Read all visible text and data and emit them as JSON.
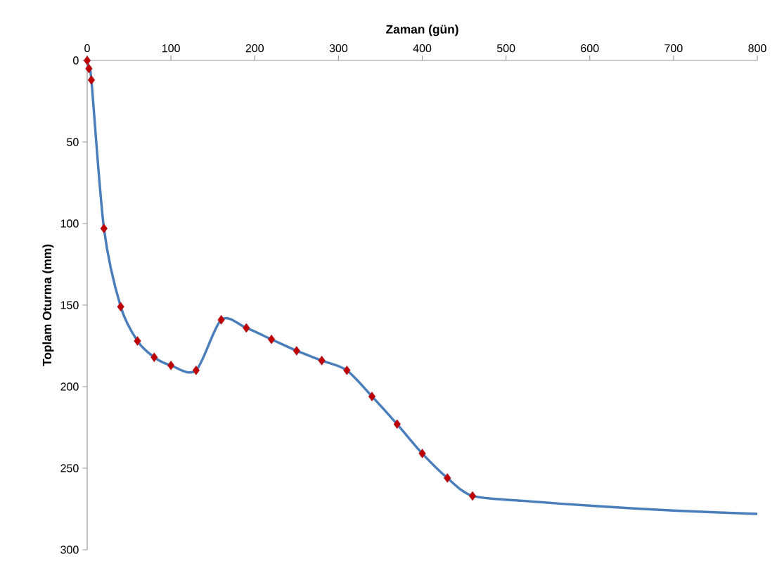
{
  "chart_data": {
    "type": "line",
    "xlabel": "Zaman (gün)",
    "ylabel": "Toplam Oturma (mm)",
    "xlim": [
      0,
      800
    ],
    "ylim": [
      300,
      0
    ],
    "xticks": [
      0,
      100,
      200,
      300,
      400,
      500,
      600,
      700,
      800
    ],
    "yticks": [
      0,
      50,
      100,
      150,
      200,
      250,
      300
    ],
    "series": [
      {
        "color": "#4a7ebb",
        "marker": "none",
        "x": [
          0,
          2,
          5,
          20,
          40,
          60,
          80,
          100,
          130,
          160,
          190,
          220,
          250,
          280,
          310,
          340,
          370,
          400,
          430,
          460,
          520,
          600,
          700,
          800
        ],
        "values": [
          0,
          5,
          12,
          103,
          151,
          172,
          182,
          187,
          190,
          159,
          164,
          171,
          178,
          184,
          190,
          206,
          223,
          241,
          256,
          267,
          270,
          273,
          276,
          278
        ]
      },
      {
        "type": "scatter",
        "color": "#c00000",
        "marker": "diamond",
        "x": [
          0,
          2,
          5,
          20,
          40,
          60,
          80,
          100,
          130,
          160,
          190,
          220,
          250,
          280,
          310,
          340,
          370,
          400,
          430,
          460
        ],
        "values": [
          0,
          5,
          12,
          103,
          151,
          172,
          182,
          187,
          190,
          159,
          164,
          171,
          178,
          184,
          190,
          206,
          223,
          241,
          256,
          267
        ]
      }
    ]
  }
}
